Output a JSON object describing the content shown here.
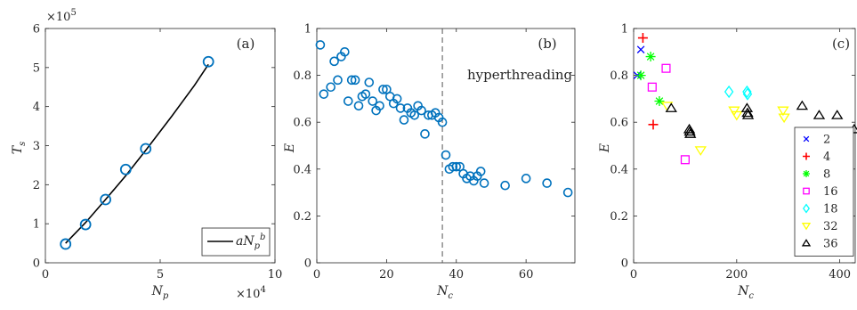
{
  "chart_data": [
    {
      "type": "scatter",
      "panel_label": "(a)",
      "xlabel": "N_p",
      "ylabel": "T_s",
      "xlim": [
        0,
        10
      ],
      "ylim": [
        0,
        6
      ],
      "xticks": [
        0,
        5,
        10
      ],
      "yticks": [
        0,
        1,
        2,
        3,
        4,
        5,
        6
      ],
      "x_exponent": "×10",
      "x_exponent_power": "4",
      "y_exponent": "×10",
      "y_exponent_power": "5",
      "series": [
        {
          "kind": "points",
          "color": "#0072BD",
          "x": [
            0.88,
            1.75,
            2.62,
            3.5,
            4.37,
            7.1
          ],
          "y": [
            0.48,
            0.98,
            1.62,
            2.39,
            2.92,
            5.15
          ]
        },
        {
          "kind": "fit",
          "name": "aN_p^b",
          "color": "#000000",
          "x": [
            0.88,
            1.75,
            2.62,
            3.5,
            4.37,
            5.5,
            6.5,
            7.1
          ],
          "y": [
            0.5,
            1.03,
            1.62,
            2.23,
            2.88,
            3.75,
            4.55,
            5.08
          ]
        }
      ],
      "legend": {
        "label": "aN_p^b",
        "position": "bottom-right"
      }
    },
    {
      "type": "scatter",
      "panel_label": "(b)",
      "xlabel": "N_c",
      "ylabel": "E",
      "xlim": [
        0,
        74
      ],
      "ylim": [
        0,
        1
      ],
      "xticks": [
        0,
        20,
        40,
        60
      ],
      "yticks": [
        0,
        0.2,
        0.4,
        0.6,
        0.8,
        1
      ],
      "vline": {
        "x": 36,
        "label": "hyperthreading"
      },
      "series": [
        {
          "color": "#0072BD",
          "x": [
            1,
            2,
            4,
            5,
            6,
            7,
            8,
            9,
            10,
            11,
            12,
            13,
            14,
            15,
            16,
            17,
            18,
            19,
            20,
            21,
            22,
            23,
            24,
            25,
            26,
            27,
            28,
            29,
            30,
            31,
            32,
            33,
            34,
            35,
            36,
            37,
            38,
            39,
            40,
            41,
            42,
            43,
            44,
            45,
            46,
            47,
            48,
            54,
            60,
            66,
            72
          ],
          "y": [
            0.93,
            0.72,
            0.75,
            0.86,
            0.78,
            0.88,
            0.9,
            0.69,
            0.78,
            0.78,
            0.67,
            0.71,
            0.72,
            0.77,
            0.69,
            0.65,
            0.67,
            0.74,
            0.74,
            0.71,
            0.68,
            0.7,
            0.66,
            0.61,
            0.66,
            0.64,
            0.63,
            0.67,
            0.65,
            0.55,
            0.63,
            0.63,
            0.64,
            0.62,
            0.6,
            0.46,
            0.4,
            0.41,
            0.41,
            0.41,
            0.38,
            0.36,
            0.37,
            0.35,
            0.37,
            0.39,
            0.34,
            0.33,
            0.36,
            0.34,
            0.3
          ]
        }
      ]
    },
    {
      "type": "scatter",
      "panel_label": "(c)",
      "xlabel": "N_c",
      "ylabel": "E",
      "xlim": [
        0,
        430
      ],
      "ylim": [
        0,
        1
      ],
      "xticks": [
        0,
        200,
        400
      ],
      "yticks": [
        0,
        0.2,
        0.4,
        0.6,
        0.8,
        1
      ],
      "legend_position": "right",
      "series": [
        {
          "name": "2",
          "marker": "x",
          "color": "#0000ff",
          "x": [
            7,
            14
          ],
          "y": [
            0.8,
            0.91
          ]
        },
        {
          "name": "4",
          "marker": "plus",
          "color": "#ff0000",
          "x": [
            18,
            38
          ],
          "y": [
            0.96,
            0.59
          ]
        },
        {
          "name": "8",
          "marker": "star",
          "color": "#00ff00",
          "x": [
            14,
            33,
            50
          ],
          "y": [
            0.8,
            0.88,
            0.69
          ]
        },
        {
          "name": "16",
          "marker": "square",
          "color": "#ff00ff",
          "x": [
            36,
            63,
            100
          ],
          "y": [
            0.75,
            0.83,
            0.44
          ]
        },
        {
          "name": "18",
          "marker": "diamond",
          "color": "#00ffff",
          "x": [
            185,
            220,
            221
          ],
          "y": [
            0.73,
            0.73,
            0.72
          ]
        },
        {
          "name": "32",
          "marker": "triangle-down",
          "color": "#ffff00",
          "x": [
            65,
            130,
            195,
            200,
            290,
            292
          ],
          "y": [
            0.67,
            0.48,
            0.65,
            0.63,
            0.65,
            0.62
          ]
        },
        {
          "name": "36",
          "marker": "triangle-up",
          "color": "#000000",
          "x": [
            73,
            108,
            109,
            110,
            220,
            221,
            222,
            327,
            360,
            395,
            428
          ],
          "y": [
            0.66,
            0.57,
            0.56,
            0.55,
            0.66,
            0.64,
            0.63,
            0.67,
            0.63,
            0.63,
            0.57
          ]
        }
      ]
    }
  ]
}
